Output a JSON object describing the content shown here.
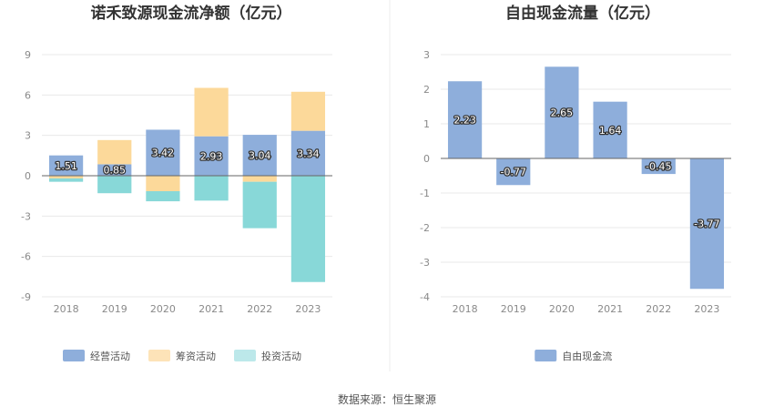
{
  "source": "数据来源：恒生聚源",
  "chart_data": [
    {
      "type": "bar",
      "stacked": true,
      "title": "诺禾致源现金流净额（亿元）",
      "categories": [
        "2018",
        "2019",
        "2020",
        "2021",
        "2022",
        "2023"
      ],
      "ylim": [
        -9,
        9
      ],
      "yticks": [
        "9",
        "6",
        "3",
        "0",
        "-3",
        "-6",
        "-9"
      ],
      "grid": true,
      "legend_position": "bottom",
      "series": [
        {
          "name": "经营活动",
          "color": "#8eaedb",
          "values": [
            1.51,
            0.85,
            3.42,
            2.93,
            3.04,
            3.34
          ],
          "labels": [
            "1.51",
            "0.85",
            "3.42",
            "2.93",
            "3.04",
            "3.34"
          ]
        },
        {
          "name": "筹资活动",
          "color": "#fcd99a",
          "values": [
            -0.2,
            1.8,
            -1.15,
            3.6,
            -0.45,
            2.9
          ]
        },
        {
          "name": "投资活动",
          "color": "#88d8d8",
          "values": [
            -0.25,
            -1.3,
            -0.75,
            -1.85,
            -3.45,
            -7.9
          ]
        }
      ],
      "legend_colors": [
        "#8eaedb",
        "#fde3b8",
        "#bce8ea"
      ]
    },
    {
      "type": "bar",
      "title": "自由现金流量（亿元）",
      "categories": [
        "2018",
        "2019",
        "2020",
        "2021",
        "2022",
        "2023"
      ],
      "ylim": [
        -4,
        3
      ],
      "yticks": [
        "3",
        "2",
        "1",
        "0",
        "-1",
        "-2",
        "-3",
        "-4"
      ],
      "grid": true,
      "legend_position": "bottom",
      "series": [
        {
          "name": "自由现金流",
          "color": "#8eaedb",
          "values": [
            2.23,
            -0.77,
            2.65,
            1.64,
            -0.45,
            -3.77
          ],
          "labels": [
            "2.23",
            "-0.77",
            "2.65",
            "1.64",
            "-0.45",
            "-3.77"
          ]
        }
      ]
    }
  ]
}
